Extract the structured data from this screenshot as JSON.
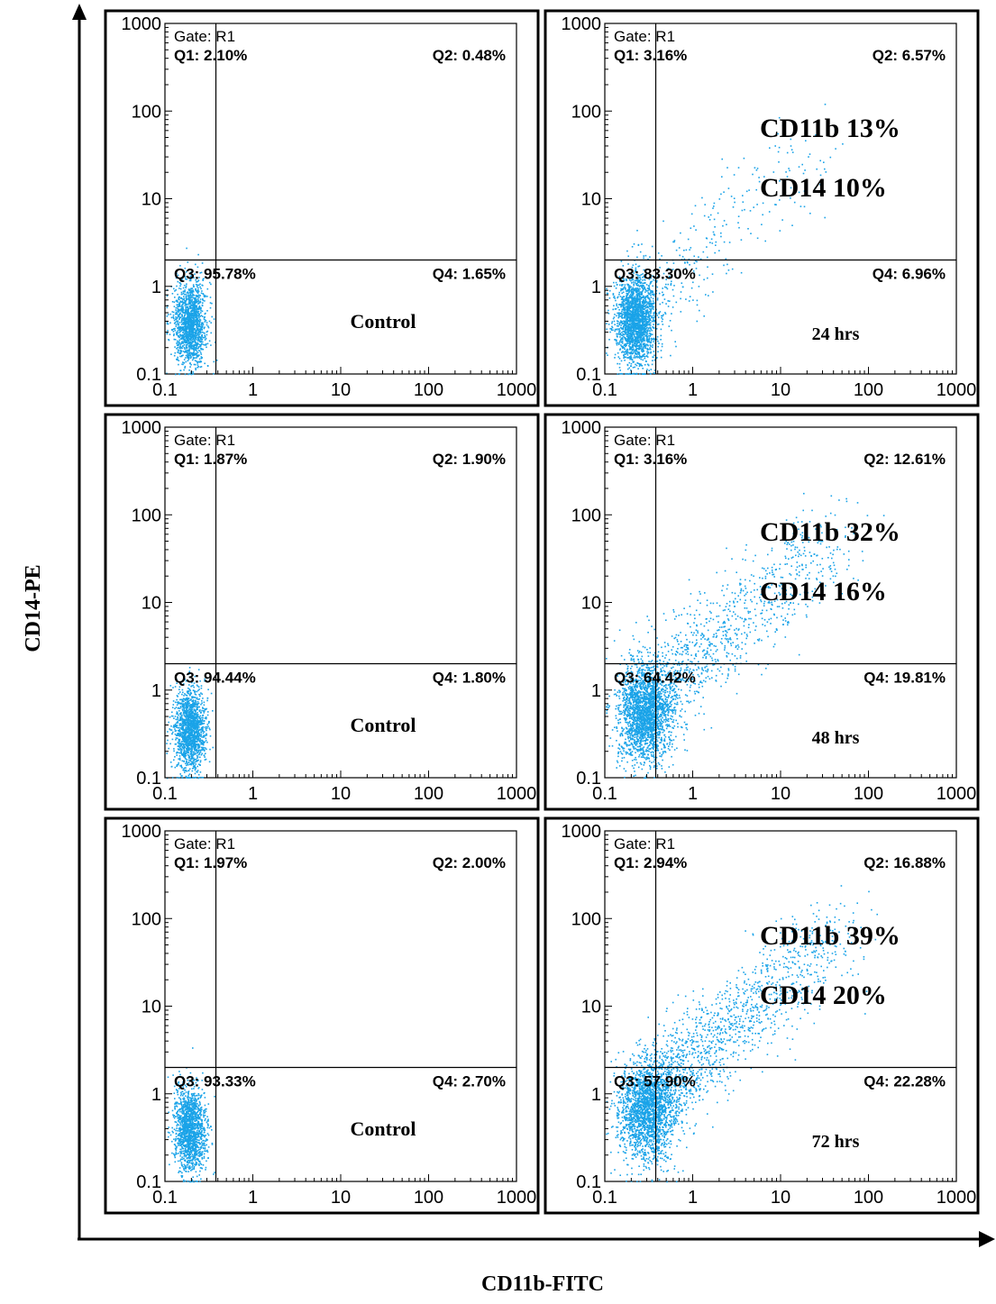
{
  "figure": {
    "xlabel": "CD11b-FITC",
    "ylabel": "CD14-PE",
    "accent_color": "#1aa3e8"
  },
  "chart_data": [
    {
      "type": "scatter",
      "row": 0,
      "col": 0,
      "gate": "Gate: R1",
      "quadrants": {
        "q1": "Q1: 2.10%",
        "q2": "Q2: 0.48%",
        "q3": "Q3: 95.78%",
        "q4": "Q4: 1.65%"
      },
      "sample_label": "Control",
      "cd11b_label": "",
      "cd14_label": "",
      "xlim": [
        0.1,
        1000
      ],
      "ylim": [
        0.1,
        1000
      ],
      "xscale": "log",
      "yscale": "log",
      "x_ticks": [
        "0.1",
        "1",
        "10",
        "100",
        "1000"
      ],
      "y_ticks": [
        "0.1",
        "1",
        "10",
        "100",
        "1000"
      ],
      "gate_x": 0.38,
      "gate_y": 2.0,
      "cluster": {
        "x": 0.19,
        "y": 0.38
      },
      "diagonal_spread": 0.0,
      "events": 1500
    },
    {
      "type": "scatter",
      "row": 0,
      "col": 1,
      "gate": "Gate: R1",
      "quadrants": {
        "q1": "Q1: 3.16%",
        "q2": "Q2: 6.57%",
        "q3": "Q3: 83.30%",
        "q4": "Q4: 6.96%"
      },
      "sample_label": "24 hrs",
      "cd11b_label": "CD11b  13%",
      "cd14_label": "CD14    10%",
      "xlim": [
        0.1,
        1000
      ],
      "ylim": [
        0.1,
        1000
      ],
      "xscale": "log",
      "yscale": "log",
      "x_ticks": [
        "0.1",
        "1",
        "10",
        "100",
        "1000"
      ],
      "y_ticks": [
        "0.1",
        "1",
        "10",
        "100",
        "1000"
      ],
      "gate_x": 0.38,
      "gate_y": 2.0,
      "cluster": {
        "x": 0.22,
        "y": 0.42
      },
      "diagonal_spread": 0.13,
      "events": 2400
    },
    {
      "type": "scatter",
      "row": 1,
      "col": 0,
      "gate": "Gate: R1",
      "quadrants": {
        "q1": "Q1: 1.87%",
        "q2": "Q2: 1.90%",
        "q3": "Q3: 94.44%",
        "q4": "Q4: 1.80%"
      },
      "sample_label": "Control",
      "cd11b_label": "",
      "cd14_label": "",
      "xlim": [
        0.1,
        1000
      ],
      "ylim": [
        0.1,
        1000
      ],
      "xscale": "log",
      "yscale": "log",
      "x_ticks": [
        "0.1",
        "1",
        "10",
        "100",
        "1000"
      ],
      "y_ticks": [
        "0.1",
        "1",
        "10",
        "100",
        "1000"
      ],
      "gate_x": 0.38,
      "gate_y": 2.0,
      "cluster": {
        "x": 0.19,
        "y": 0.36
      },
      "diagonal_spread": 0.0,
      "events": 1500
    },
    {
      "type": "scatter",
      "row": 1,
      "col": 1,
      "gate": "Gate: R1",
      "quadrants": {
        "q1": "Q1: 3.16%",
        "q2": "Q2: 12.61%",
        "q3": "Q3: 64.42%",
        "q4": "Q4: 19.81%"
      },
      "sample_label": "48 hrs",
      "cd11b_label": "CD11b  32%",
      "cd14_label": "CD14    16%",
      "xlim": [
        0.1,
        1000
      ],
      "ylim": [
        0.1,
        1000
      ],
      "xscale": "log",
      "yscale": "log",
      "x_ticks": [
        "0.1",
        "1",
        "10",
        "100",
        "1000"
      ],
      "y_ticks": [
        "0.1",
        "1",
        "10",
        "100",
        "1000"
      ],
      "gate_x": 0.38,
      "gate_y": 2.0,
      "cluster": {
        "x": 0.28,
        "y": 0.55
      },
      "diagonal_spread": 0.32,
      "events": 3200
    },
    {
      "type": "scatter",
      "row": 2,
      "col": 0,
      "gate": "Gate: R1",
      "quadrants": {
        "q1": "Q1: 1.97%",
        "q2": "Q2: 2.00%",
        "q3": "Q3: 93.33%",
        "q4": "Q4: 2.70%"
      },
      "sample_label": "Control",
      "cd11b_label": "",
      "cd14_label": "",
      "xlim": [
        0.1,
        1000
      ],
      "ylim": [
        0.1,
        1000
      ],
      "xscale": "log",
      "yscale": "log",
      "x_ticks": [
        "0.1",
        "1",
        "10",
        "100",
        "1000"
      ],
      "y_ticks": [
        "0.1",
        "1",
        "10",
        "100",
        "1000"
      ],
      "gate_x": 0.38,
      "gate_y": 2.0,
      "cluster": {
        "x": 0.19,
        "y": 0.4
      },
      "diagonal_spread": 0.0,
      "events": 1500
    },
    {
      "type": "scatter",
      "row": 2,
      "col": 1,
      "gate": "Gate: R1",
      "quadrants": {
        "q1": "Q1: 2.94%",
        "q2": "Q2: 16.88%",
        "q3": "Q3: 57.90%",
        "q4": "Q4: 22.28%"
      },
      "sample_label": "72 hrs",
      "cd11b_label": "CD11b  39%",
      "cd14_label": "CD14    20%",
      "xlim": [
        0.1,
        1000
      ],
      "ylim": [
        0.1,
        1000
      ],
      "xscale": "log",
      "yscale": "log",
      "x_ticks": [
        "0.1",
        "1",
        "10",
        "100",
        "1000"
      ],
      "y_ticks": [
        "0.1",
        "1",
        "10",
        "100",
        "1000"
      ],
      "gate_x": 0.38,
      "gate_y": 2.0,
      "cluster": {
        "x": 0.3,
        "y": 0.65
      },
      "diagonal_spread": 0.4,
      "events": 3400
    }
  ]
}
